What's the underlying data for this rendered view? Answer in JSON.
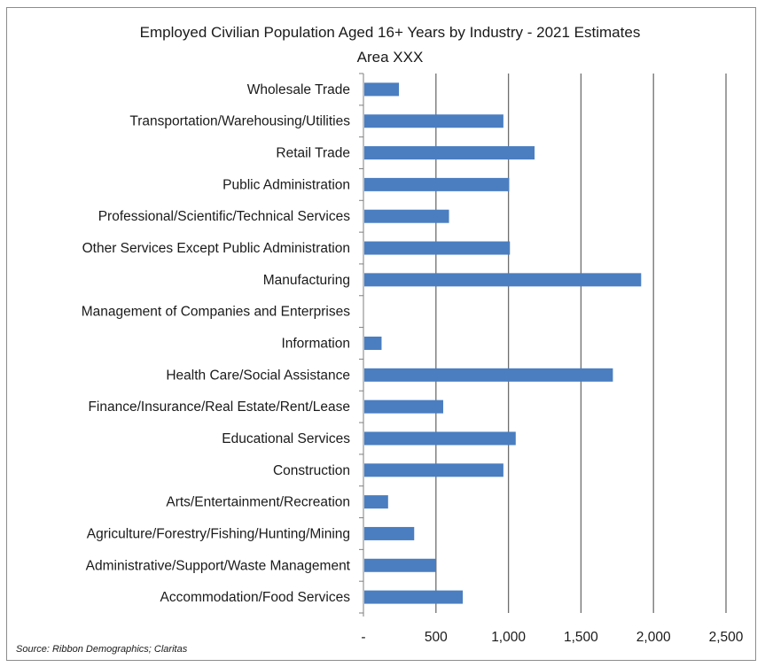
{
  "chart_data": {
    "type": "bar",
    "orientation": "horizontal",
    "title": "Employed Civilian Population Aged 16+ Years by Industry - 2021 Estimates",
    "subtitle": "Area XXX",
    "xlabel": "",
    "ylabel": "",
    "xlim": [
      0,
      2500
    ],
    "x_ticks": [
      0,
      500,
      1000,
      1500,
      2000,
      2500
    ],
    "x_tick_labels": [
      "-",
      "500",
      "1,000",
      "1,500",
      "2,000",
      "2,500"
    ],
    "grid": true,
    "bar_color": "#4a7ec1",
    "categories": [
      "Wholesale Trade",
      "Transportation/Warehousing/Utilities",
      "Retail Trade",
      "Public Administration",
      "Professional/Scientific/Technical Services",
      "Other Services Except Public Administration",
      "Manufacturing",
      "Management of Companies and Enterprises",
      "Information",
      "Health Care/Social Assistance",
      "Finance/Insurance/Real Estate/Rent/Lease",
      "Educational Services",
      "Construction",
      "Arts/Entertainment/Recreation",
      "Agriculture/Forestry/Fishing/Hunting/Mining",
      "Administrative/Support/Waste Management",
      "Accommodation/Food Services"
    ],
    "values": [
      245,
      965,
      1180,
      1005,
      590,
      1010,
      1915,
      0,
      125,
      1720,
      550,
      1050,
      965,
      170,
      350,
      500,
      685
    ],
    "source": "Source: Ribbon Demographics; Claritas"
  }
}
